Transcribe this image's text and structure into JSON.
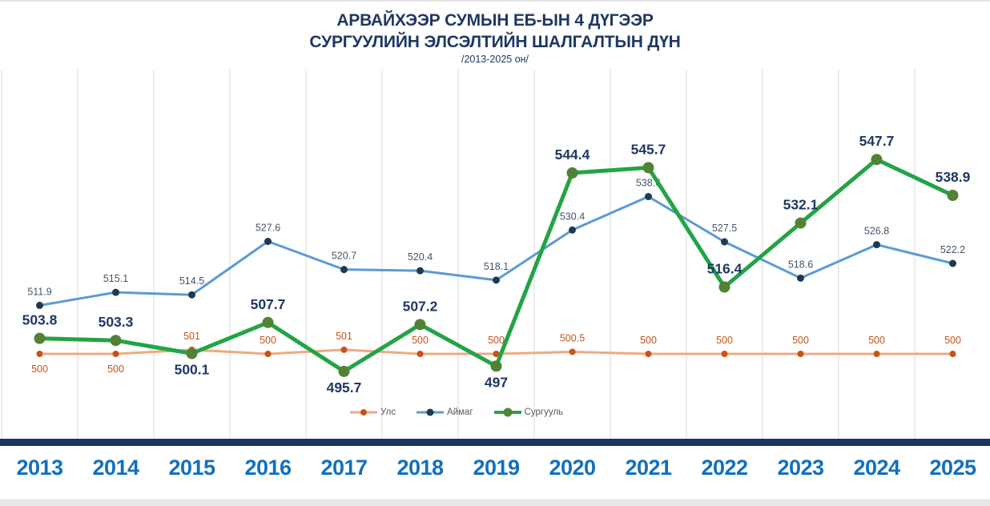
{
  "header": {
    "title_line1": "АРВАЙХЭЭР СУМЫН ЕБ-ЫН 4 ДҮГЭЭР",
    "title_line2": "СУРГУУЛИЙН ЭЛСЭЛТИЙН ШАЛГАЛТЫН ДҮН",
    "subtitle": "/2013-2025 он/"
  },
  "chart_data": {
    "type": "line",
    "categories": [
      "2013",
      "2014",
      "2015",
      "2016",
      "2017",
      "2018",
      "2019",
      "2020",
      "2021",
      "2022",
      "2023",
      "2024",
      "2025"
    ],
    "series": [
      {
        "name": "Улс",
        "values": [
          500,
          500,
          501,
          500,
          501,
          500,
          500,
          500.5,
          500,
          500,
          500,
          500,
          500
        ],
        "line_color": "#EFA981",
        "marker_color": "#C55418",
        "label_color": "#C55418",
        "line_width": 3,
        "marker_radius": 4,
        "label_size": 12.5,
        "label_positions": [
          "below",
          "below",
          "above",
          "above",
          "above",
          "above",
          "above",
          "above",
          "above",
          "above",
          "above",
          "above",
          "above"
        ]
      },
      {
        "name": "Аймаг",
        "values": [
          511.9,
          515.1,
          514.5,
          527.6,
          520.7,
          520.4,
          518.1,
          530.4,
          538.6,
          527.5,
          518.6,
          526.8,
          522.2
        ],
        "line_color": "#5B9BD5",
        "marker_color": "#1E3A52",
        "label_color": "#44546A",
        "line_width": 3,
        "marker_radius": 4.5,
        "label_size": 12.5,
        "label_positions": [
          "above",
          "above",
          "above",
          "above",
          "above",
          "above",
          "above",
          "above",
          "above",
          "above",
          "above",
          "above",
          "above"
        ]
      },
      {
        "name": "Сургууль",
        "values": [
          503.8,
          503.3,
          500.1,
          507.7,
          495.7,
          507.2,
          497,
          544.4,
          545.7,
          516.4,
          532.1,
          547.7,
          538.9
        ],
        "line_color": "#22A446",
        "marker_color": "#538135",
        "label_color": "#1F3864",
        "line_width": 5,
        "marker_radius": 7,
        "label_size": 17.5,
        "label_positions": [
          "above",
          "above",
          "below",
          "above",
          "below",
          "above",
          "below",
          "above",
          "above",
          "above",
          "above",
          "above",
          "above"
        ]
      }
    ],
    "title": "АРВАЙХЭЭР СУМЫН ЕБ-ЫН 4 ДҮГЭЭР СУРГУУЛИЙН ЭЛСЭЛТИЙН ШАЛГАЛТЫН ДҮН /2013-2025 он/",
    "xlabel": "",
    "ylabel": "",
    "ylim": [
      480,
      570
    ],
    "y_axis_visible": false,
    "grid": "vertical-only",
    "legend_position": "bottom-center",
    "legend": [
      "Улс",
      "Аймаг",
      "Сургууль"
    ]
  },
  "colors": {
    "title": "#1F3864",
    "year_label": "#1170BD",
    "axis_bar": "#17375E",
    "gridline": "#D9D9D9",
    "legend_text": "#595959",
    "background": "#FFFFFF"
  }
}
